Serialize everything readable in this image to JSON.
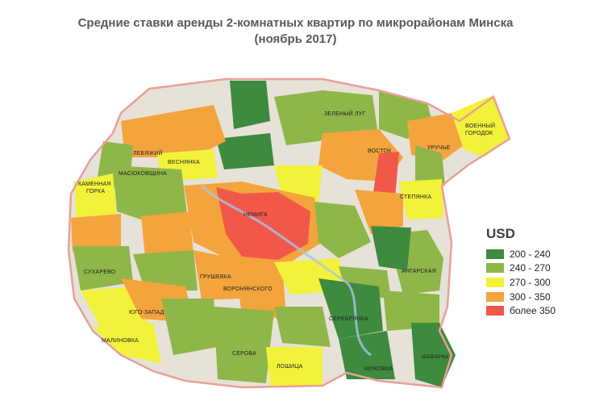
{
  "title_line1": "Средние ставки аренды 2-комнатных квартир по микрорайонам Минска",
  "title_line2": "(ноябрь 2017)",
  "legend": {
    "title": "USD",
    "items": [
      {
        "label": "200 - 240",
        "color": "#3e8a3e"
      },
      {
        "label": "240 - 270",
        "color": "#8fb648"
      },
      {
        "label": "270 - 300",
        "color": "#f2f23a"
      },
      {
        "label": "300 - 350",
        "color": "#f4a43c"
      },
      {
        "label": "более 350",
        "color": "#f2584a"
      }
    ]
  },
  "districts": [
    {
      "name": "ЗЕЛЕНЫЙ ЛУГ",
      "class": "240 - 270"
    },
    {
      "name": "ВОЕННЫЙ",
      "class": "270 - 300"
    },
    {
      "name": "ГОРОДОК",
      "class": "270 - 300"
    },
    {
      "name": "ЛЕБЯЖИЙ",
      "class": "300 - 350"
    },
    {
      "name": "ВЕСНЯНКА",
      "class": "270 - 300"
    },
    {
      "name": "ВОСТОК",
      "class": "300 - 350"
    },
    {
      "name": "УРУЧЬЕ",
      "class": "240 - 270"
    },
    {
      "name": "МАСЮКОВЩИНА",
      "class": "240 - 270"
    },
    {
      "name": "КАМЕННАЯ",
      "class": "270 - 300"
    },
    {
      "name": "ГОРКА",
      "class": "270 - 300"
    },
    {
      "name": "СТЕПЯНКА",
      "class": "270 - 300"
    },
    {
      "name": "НЕМИГА",
      "class": "более 350"
    },
    {
      "name": "СУХАРЕВО",
      "class": "240 - 270"
    },
    {
      "name": "АНГАРСКАЯ",
      "class": "240 - 270"
    },
    {
      "name": "ГРУШЕВКА",
      "class": "300 - 350"
    },
    {
      "name": "ВОРОНЯНСКОГО",
      "class": "300 - 350"
    },
    {
      "name": "ЮГО-ЗАПАД",
      "class": "270 - 300"
    },
    {
      "name": "СЕРЕБРЯНКА",
      "class": "200 - 240"
    },
    {
      "name": "МАЛИНОВКА",
      "class": "270 - 300"
    },
    {
      "name": "СЕРОВА",
      "class": "240 - 270"
    },
    {
      "name": "ЛОШИЦА",
      "class": "270 - 300"
    },
    {
      "name": "ЧИЖОВКА",
      "class": "200 - 240"
    },
    {
      "name": "ШАБАНЫ",
      "class": "200 - 240"
    }
  ]
}
